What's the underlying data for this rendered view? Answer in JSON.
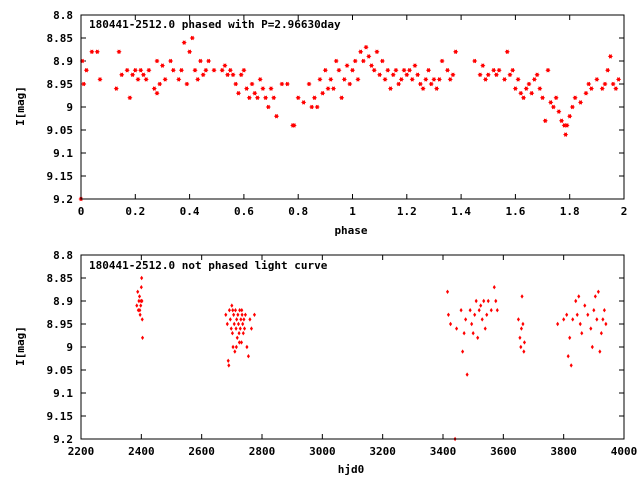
{
  "colors": {
    "points": "#ff0000",
    "axes": "#000000",
    "background": "#ffffff"
  },
  "chart_data": [
    {
      "type": "scatter",
      "title": "180441-2512.0 phased with P=2.96630day",
      "xlabel": "phase",
      "ylabel": "I[mag]",
      "xlim": [
        0,
        2
      ],
      "ylim": [
        9.2,
        8.8
      ],
      "y_inverted": true,
      "x_ticks": [
        "0",
        "0.2",
        "0.4",
        "0.6",
        "0.8",
        "1",
        "1.2",
        "1.4",
        "1.6",
        "1.8",
        "2"
      ],
      "x_tick_values": [
        0,
        0.2,
        0.4,
        0.6,
        0.8,
        1,
        1.2,
        1.4,
        1.6,
        1.8,
        2
      ],
      "y_ticks": [
        "8.8",
        "8.85",
        "8.9",
        "8.95",
        "9",
        "9.05",
        "9.1",
        "9.15",
        "9.2"
      ],
      "y_tick_values": [
        8.8,
        8.85,
        8.9,
        8.95,
        9,
        9.05,
        9.1,
        9.15,
        9.2
      ],
      "marker": "star",
      "grid": false,
      "points": [
        [
          0.0,
          9.2
        ],
        [
          0.005,
          8.9
        ],
        [
          0.01,
          8.95
        ],
        [
          0.02,
          8.92
        ],
        [
          0.04,
          8.88
        ],
        [
          0.06,
          8.88
        ],
        [
          0.07,
          8.94
        ],
        [
          0.13,
          8.96
        ],
        [
          0.14,
          8.88
        ],
        [
          0.15,
          8.93
        ],
        [
          0.17,
          8.92
        ],
        [
          0.18,
          8.98
        ],
        [
          0.19,
          8.93
        ],
        [
          0.2,
          8.92
        ],
        [
          0.21,
          8.94
        ],
        [
          0.22,
          8.92
        ],
        [
          0.23,
          8.93
        ],
        [
          0.24,
          8.94
        ],
        [
          0.25,
          8.92
        ],
        [
          0.27,
          8.96
        ],
        [
          0.28,
          8.97
        ],
        [
          0.28,
          8.9
        ],
        [
          0.29,
          8.95
        ],
        [
          0.3,
          8.91
        ],
        [
          0.31,
          8.94
        ],
        [
          0.33,
          8.9
        ],
        [
          0.34,
          8.92
        ],
        [
          0.36,
          8.94
        ],
        [
          0.37,
          8.92
        ],
        [
          0.38,
          8.86
        ],
        [
          0.39,
          8.95
        ],
        [
          0.4,
          8.88
        ],
        [
          0.41,
          8.85
        ],
        [
          0.42,
          8.92
        ],
        [
          0.43,
          8.94
        ],
        [
          0.44,
          8.9
        ],
        [
          0.45,
          8.93
        ],
        [
          0.46,
          8.92
        ],
        [
          0.47,
          8.9
        ],
        [
          0.49,
          8.92
        ],
        [
          0.52,
          8.92
        ],
        [
          0.53,
          8.91
        ],
        [
          0.54,
          8.93
        ],
        [
          0.55,
          8.92
        ],
        [
          0.56,
          8.93
        ],
        [
          0.57,
          8.95
        ],
        [
          0.58,
          8.97
        ],
        [
          0.59,
          8.93
        ],
        [
          0.6,
          8.92
        ],
        [
          0.61,
          8.96
        ],
        [
          0.62,
          8.98
        ],
        [
          0.63,
          8.95
        ],
        [
          0.64,
          8.97
        ],
        [
          0.65,
          8.98
        ],
        [
          0.66,
          8.94
        ],
        [
          0.67,
          8.96
        ],
        [
          0.68,
          8.98
        ],
        [
          0.69,
          9.0
        ],
        [
          0.7,
          8.96
        ],
        [
          0.71,
          8.98
        ],
        [
          0.72,
          9.02
        ],
        [
          0.74,
          8.95
        ],
        [
          0.76,
          8.95
        ],
        [
          0.78,
          9.04
        ],
        [
          0.785,
          9.04
        ],
        [
          0.8,
          8.98
        ],
        [
          0.82,
          8.99
        ],
        [
          0.84,
          8.95
        ],
        [
          0.85,
          9.0
        ],
        [
          0.86,
          8.98
        ],
        [
          0.87,
          9.0
        ],
        [
          0.88,
          8.94
        ],
        [
          0.89,
          8.97
        ],
        [
          0.9,
          8.92
        ],
        [
          0.91,
          8.96
        ],
        [
          0.92,
          8.94
        ],
        [
          0.93,
          8.96
        ],
        [
          0.94,
          8.9
        ],
        [
          0.95,
          8.92
        ],
        [
          0.96,
          8.98
        ],
        [
          0.97,
          8.94
        ],
        [
          0.98,
          8.91
        ],
        [
          0.99,
          8.95
        ],
        [
          1.0,
          8.92
        ],
        [
          1.01,
          8.9
        ],
        [
          1.02,
          8.94
        ],
        [
          1.03,
          8.88
        ],
        [
          1.04,
          8.9
        ],
        [
          1.05,
          8.87
        ],
        [
          1.06,
          8.89
        ],
        [
          1.07,
          8.91
        ],
        [
          1.08,
          8.92
        ],
        [
          1.09,
          8.88
        ],
        [
          1.1,
          8.93
        ],
        [
          1.11,
          8.9
        ],
        [
          1.12,
          8.94
        ],
        [
          1.13,
          8.92
        ],
        [
          1.14,
          8.96
        ],
        [
          1.15,
          8.93
        ],
        [
          1.16,
          8.92
        ],
        [
          1.17,
          8.95
        ],
        [
          1.18,
          8.94
        ],
        [
          1.19,
          8.92
        ],
        [
          1.2,
          8.93
        ],
        [
          1.21,
          8.92
        ],
        [
          1.22,
          8.94
        ],
        [
          1.23,
          8.91
        ],
        [
          1.24,
          8.93
        ],
        [
          1.25,
          8.95
        ],
        [
          1.26,
          8.96
        ],
        [
          1.27,
          8.94
        ],
        [
          1.28,
          8.92
        ],
        [
          1.29,
          8.95
        ],
        [
          1.3,
          8.94
        ],
        [
          1.31,
          8.96
        ],
        [
          1.32,
          8.94
        ],
        [
          1.33,
          8.9
        ],
        [
          1.35,
          8.92
        ],
        [
          1.36,
          8.94
        ],
        [
          1.37,
          8.93
        ],
        [
          1.38,
          8.88
        ],
        [
          1.45,
          8.9
        ],
        [
          1.47,
          8.93
        ],
        [
          1.48,
          8.91
        ],
        [
          1.49,
          8.94
        ],
        [
          1.5,
          8.93
        ],
        [
          1.52,
          8.92
        ],
        [
          1.53,
          8.93
        ],
        [
          1.54,
          8.92
        ],
        [
          1.56,
          8.94
        ],
        [
          1.57,
          8.88
        ],
        [
          1.58,
          8.93
        ],
        [
          1.59,
          8.92
        ],
        [
          1.6,
          8.96
        ],
        [
          1.61,
          8.94
        ],
        [
          1.62,
          8.97
        ],
        [
          1.63,
          8.98
        ],
        [
          1.64,
          8.96
        ],
        [
          1.65,
          8.95
        ],
        [
          1.66,
          8.97
        ],
        [
          1.67,
          8.94
        ],
        [
          1.68,
          8.93
        ],
        [
          1.69,
          8.96
        ],
        [
          1.7,
          8.98
        ],
        [
          1.71,
          9.03
        ],
        [
          1.72,
          8.92
        ],
        [
          1.73,
          8.99
        ],
        [
          1.74,
          9.0
        ],
        [
          1.75,
          8.98
        ],
        [
          1.76,
          9.01
        ],
        [
          1.77,
          9.03
        ],
        [
          1.78,
          9.04
        ],
        [
          1.785,
          9.06
        ],
        [
          1.79,
          9.04
        ],
        [
          1.8,
          9.02
        ],
        [
          1.81,
          9.0
        ],
        [
          1.82,
          8.98
        ],
        [
          1.84,
          8.99
        ],
        [
          1.86,
          8.97
        ],
        [
          1.87,
          8.95
        ],
        [
          1.88,
          8.96
        ],
        [
          1.9,
          8.94
        ],
        [
          1.92,
          8.96
        ],
        [
          1.93,
          8.95
        ],
        [
          1.94,
          8.92
        ],
        [
          1.95,
          8.89
        ],
        [
          1.96,
          8.95
        ],
        [
          1.97,
          8.96
        ],
        [
          1.98,
          8.94
        ]
      ]
    },
    {
      "type": "scatter",
      "title": "180441-2512.0 not phased light curve",
      "xlabel": "hjd0",
      "ylabel": "I[mag]",
      "xlim": [
        2200,
        4000
      ],
      "ylim": [
        9.2,
        8.8
      ],
      "y_inverted": true,
      "x_ticks": [
        "2200",
        "2400",
        "2600",
        "2800",
        "3000",
        "3200",
        "3400",
        "3600",
        "3800",
        "4000"
      ],
      "x_tick_values": [
        2200,
        2400,
        2600,
        2800,
        3000,
        3200,
        3400,
        3600,
        3800,
        4000
      ],
      "y_ticks": [
        "8.8",
        "8.85",
        "8.9",
        "8.95",
        "9",
        "9.05",
        "9.1",
        "9.15",
        "9.2"
      ],
      "y_tick_values": [
        8.8,
        8.85,
        8.9,
        8.95,
        9,
        9.05,
        9.1,
        9.15,
        9.2
      ],
      "marker": "diamond",
      "grid": false,
      "points": [
        [
          2385,
          8.91
        ],
        [
          2388,
          8.88
        ],
        [
          2390,
          8.92
        ],
        [
          2392,
          8.9
        ],
        [
          2394,
          8.89
        ],
        [
          2396,
          8.93
        ],
        [
          2398,
          8.91
        ],
        [
          2400,
          8.87
        ],
        [
          2401,
          8.85
        ],
        [
          2402,
          8.9
        ],
        [
          2403,
          8.94
        ],
        [
          2404,
          8.98
        ],
        [
          2395,
          8.92
        ],
        [
          2399,
          8.9
        ],
        [
          2680,
          8.93
        ],
        [
          2685,
          8.95
        ],
        [
          2688,
          9.03
        ],
        [
          2690,
          9.04
        ],
        [
          2692,
          8.92
        ],
        [
          2695,
          8.94
        ],
        [
          2698,
          8.96
        ],
        [
          2700,
          8.91
        ],
        [
          2702,
          8.97
        ],
        [
          2704,
          9.0
        ],
        [
          2706,
          8.93
        ],
        [
          2708,
          8.95
        ],
        [
          2710,
          9.01
        ],
        [
          2712,
          8.92
        ],
        [
          2714,
          8.96
        ],
        [
          2716,
          8.94
        ],
        [
          2718,
          8.98
        ],
        [
          2720,
          8.93
        ],
        [
          2722,
          8.95
        ],
        [
          2724,
          8.97
        ],
        [
          2726,
          8.92
        ],
        [
          2728,
          8.96
        ],
        [
          2730,
          8.94
        ],
        [
          2732,
          8.99
        ],
        [
          2734,
          8.93
        ],
        [
          2736,
          8.95
        ],
        [
          2738,
          8.97
        ],
        [
          2740,
          8.94
        ],
        [
          2742,
          8.96
        ],
        [
          2745,
          8.93
        ],
        [
          2750,
          9.0
        ],
        [
          2755,
          9.02
        ],
        [
          2760,
          8.94
        ],
        [
          2765,
          8.96
        ],
        [
          2775,
          8.93
        ],
        [
          2715,
          9.0
        ],
        [
          2725,
          8.99
        ],
        [
          2703,
          8.92
        ],
        [
          2733,
          8.92
        ],
        [
          3415,
          8.88
        ],
        [
          3418,
          8.93
        ],
        [
          3425,
          8.95
        ],
        [
          3440,
          9.2
        ],
        [
          3445,
          8.96
        ],
        [
          3460,
          8.92
        ],
        [
          3465,
          9.01
        ],
        [
          3470,
          8.97
        ],
        [
          3475,
          8.94
        ],
        [
          3480,
          9.06
        ],
        [
          3490,
          8.92
        ],
        [
          3495,
          8.95
        ],
        [
          3500,
          8.97
        ],
        [
          3505,
          8.93
        ],
        [
          3510,
          8.9
        ],
        [
          3515,
          8.98
        ],
        [
          3520,
          8.92
        ],
        [
          3525,
          8.91
        ],
        [
          3530,
          8.94
        ],
        [
          3535,
          8.9
        ],
        [
          3540,
          8.96
        ],
        [
          3545,
          8.93
        ],
        [
          3550,
          8.9
        ],
        [
          3560,
          8.92
        ],
        [
          3570,
          8.87
        ],
        [
          3575,
          8.9
        ],
        [
          3580,
          8.92
        ],
        [
          3650,
          8.94
        ],
        [
          3655,
          8.98
        ],
        [
          3658,
          9.0
        ],
        [
          3660,
          8.96
        ],
        [
          3662,
          8.89
        ],
        [
          3665,
          8.95
        ],
        [
          3668,
          9.01
        ],
        [
          3670,
          8.99
        ],
        [
          3780,
          8.95
        ],
        [
          3800,
          8.94
        ],
        [
          3810,
          8.93
        ],
        [
          3815,
          9.02
        ],
        [
          3820,
          8.98
        ],
        [
          3825,
          9.04
        ],
        [
          3830,
          8.94
        ],
        [
          3840,
          8.9
        ],
        [
          3845,
          8.93
        ],
        [
          3850,
          8.89
        ],
        [
          3855,
          8.95
        ],
        [
          3860,
          8.97
        ],
        [
          3870,
          8.91
        ],
        [
          3880,
          8.93
        ],
        [
          3890,
          8.96
        ],
        [
          3895,
          9.0
        ],
        [
          3900,
          8.92
        ],
        [
          3905,
          8.89
        ],
        [
          3910,
          8.94
        ],
        [
          3915,
          8.88
        ],
        [
          3920,
          9.01
        ],
        [
          3925,
          8.97
        ],
        [
          3930,
          8.94
        ],
        [
          3935,
          8.92
        ],
        [
          3940,
          8.95
        ]
      ]
    }
  ]
}
